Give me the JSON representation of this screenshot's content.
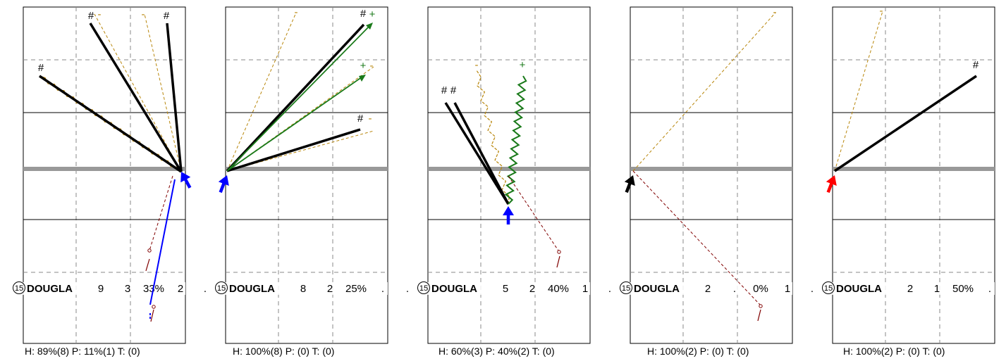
{
  "colors": {
    "grid": "#888888",
    "frame": "#000000",
    "arm": "#999999",
    "hit": "#000000",
    "dashed_orange": "#b8860b",
    "dashed_maroon": "#800000",
    "green": "#1a7a1a",
    "blue": "#0000ff",
    "red": "#ff0000"
  },
  "chart_data": [
    {
      "type": "other",
      "panel_label": "15",
      "name": "DOUGLA",
      "stats": [
        "9",
        "3",
        "33%",
        "2",
        "."
      ],
      "footer": "H: 89%(8)  P: 11%(1)  T: (0)",
      "pointer_color": "blue",
      "symbols": [
        "#",
        "-",
        "-",
        "#",
        "#"
      ]
    },
    {
      "type": "other",
      "panel_label": "15",
      "name": "DOUGLA",
      "stats": [
        "8",
        "2",
        "25%",
        ".",
        "."
      ],
      "footer": "H: 100%(8)  P: (0)  T: (0)",
      "pointer_color": "blue",
      "symbols": [
        "-",
        "#",
        "+",
        "+",
        "-",
        "#",
        "-"
      ]
    },
    {
      "type": "other",
      "panel_label": "15",
      "name": "DOUGLA",
      "stats": [
        "5",
        "2",
        "40%",
        "1",
        "."
      ],
      "footer": "H: 60%(3)  P: 40%(2)  T: (0)",
      "pointer_color": "blue",
      "symbols": [
        "-",
        "+",
        "#",
        "#"
      ]
    },
    {
      "type": "other",
      "panel_label": "15",
      "name": "DOUGLA",
      "stats": [
        "2",
        ".",
        "0%",
        "1",
        "."
      ],
      "footer": "H: 100%(2)  P: (0)  T: (0)",
      "pointer_color": "black",
      "symbols": [
        "-"
      ]
    },
    {
      "type": "other",
      "panel_label": "15",
      "name": "DOUGLA",
      "stats": [
        "2",
        "1",
        "50%",
        ".",
        "."
      ],
      "footer": "H: 100%(2)  P: (0)  T: (0)",
      "pointer_color": "red",
      "symbols": [
        "-",
        "#"
      ]
    }
  ]
}
